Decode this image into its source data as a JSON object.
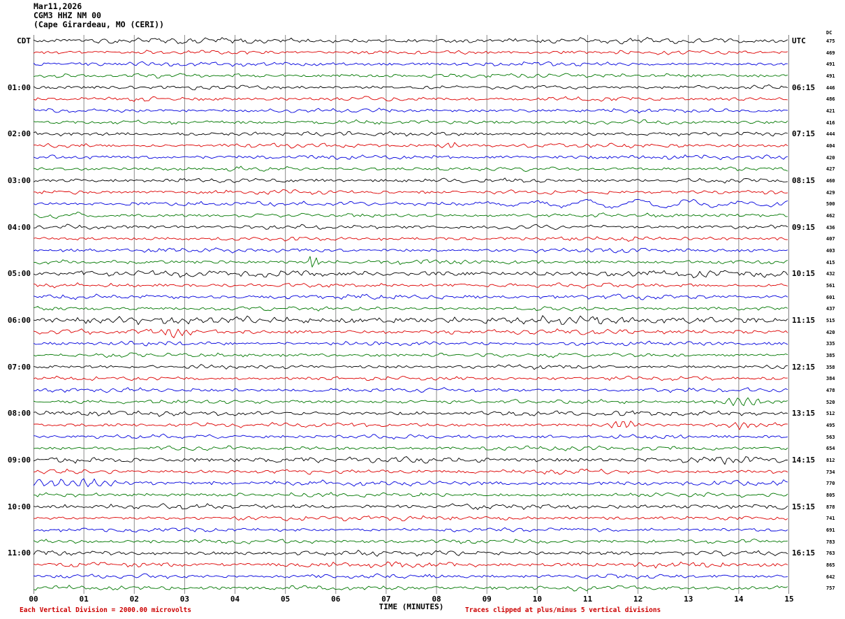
{
  "header": {
    "date": "Mar11,2026",
    "station": "CGM3 HHZ NM 00",
    "location": "(Cape Girardeau, MO (CERI))"
  },
  "axes": {
    "left_header": "CDT",
    "right_header": "UTC",
    "dc_header": "DC",
    "x_title": "TIME (MINUTES)",
    "x_ticks": [
      "00",
      "01",
      "02",
      "03",
      "04",
      "05",
      "06",
      "07",
      "08",
      "09",
      "10",
      "11",
      "12",
      "13",
      "14",
      "15"
    ]
  },
  "footer": {
    "left": "Each Vertical Division = 2000.00 microvolts",
    "right": "Traces clipped at plus/minus 5 vertical divisions"
  },
  "colors": {
    "trace_cycle": [
      "#000000",
      "#dd0000",
      "#0000dd",
      "#007700"
    ],
    "grid": "#8a8a8a",
    "border": "#000000",
    "footer_text": "#cc0000"
  },
  "chart_data": {
    "type": "line",
    "kind": "seismogram-helicorder",
    "title": "CGM3 HHZ NM 00 helicorder, Mar11,2026, Cape Girardeau, MO (CERI)",
    "minutes_per_line": 15,
    "lines_per_hour": 4,
    "x_range_minutes": [
      0,
      15
    ],
    "left_labels_cdt": [
      "01:00",
      "02:00",
      "03:00",
      "04:00",
      "05:00",
      "06:00",
      "07:00",
      "08:00",
      "09:00",
      "10:00",
      "11:00"
    ],
    "right_labels_utc": [
      "06:15",
      "07:15",
      "08:15",
      "09:15",
      "10:15",
      "11:15",
      "12:15",
      "13:15",
      "14:15",
      "15:15",
      "16:15"
    ],
    "dc_values": [
      475,
      469,
      491,
      491,
      446,
      486,
      421,
      416,
      444,
      404,
      420,
      427,
      460,
      429,
      500,
      462,
      436,
      407,
      403,
      415,
      432,
      561,
      601,
      437,
      515,
      420,
      335,
      385,
      358,
      384,
      478,
      520,
      512,
      495,
      563,
      654,
      812,
      734,
      770,
      805,
      878,
      741,
      691,
      783,
      763,
      865,
      642,
      757
    ],
    "row_amplitude": {
      "0": 1.25,
      "20": 1.5,
      "22": 1.15,
      "24": 1.85,
      "25": 1.2,
      "32": 1.2,
      "36": 1.35,
      "37": 1.15,
      "38": 1.25,
      "40": 1.3,
      "41": 1.1,
      "44": 1.15,
      "45": 1.25,
      "47": 1.1
    },
    "row_bursts": {
      "9": [
        [
          8.3,
          0.25,
          5,
          0.5
        ]
      ],
      "14": [
        [
          11.7,
          3.4,
          5.5,
          0.085
        ]
      ],
      "15": [
        [
          0.8,
          1.2,
          3.5,
          0.09
        ]
      ],
      "19": [
        [
          5.55,
          0.12,
          10,
          0.7
        ]
      ],
      "25": [
        [
          2.8,
          0.45,
          6,
          0.5
        ]
      ],
      "31": [
        [
          14.1,
          0.6,
          6,
          0.45
        ]
      ],
      "33": [
        [
          11.75,
          0.4,
          6,
          0.55
        ],
        [
          14.15,
          0.3,
          5,
          0.5
        ]
      ],
      "36": [
        [
          13.95,
          0.5,
          5,
          0.5
        ]
      ],
      "38": [
        [
          0.9,
          1.3,
          5,
          0.4
        ]
      ]
    },
    "notes": "Traces are noise-like seismic waveforms; colors cycle black, red, blue, green per 15-minute line. DC offset value shown at right of each line."
  }
}
